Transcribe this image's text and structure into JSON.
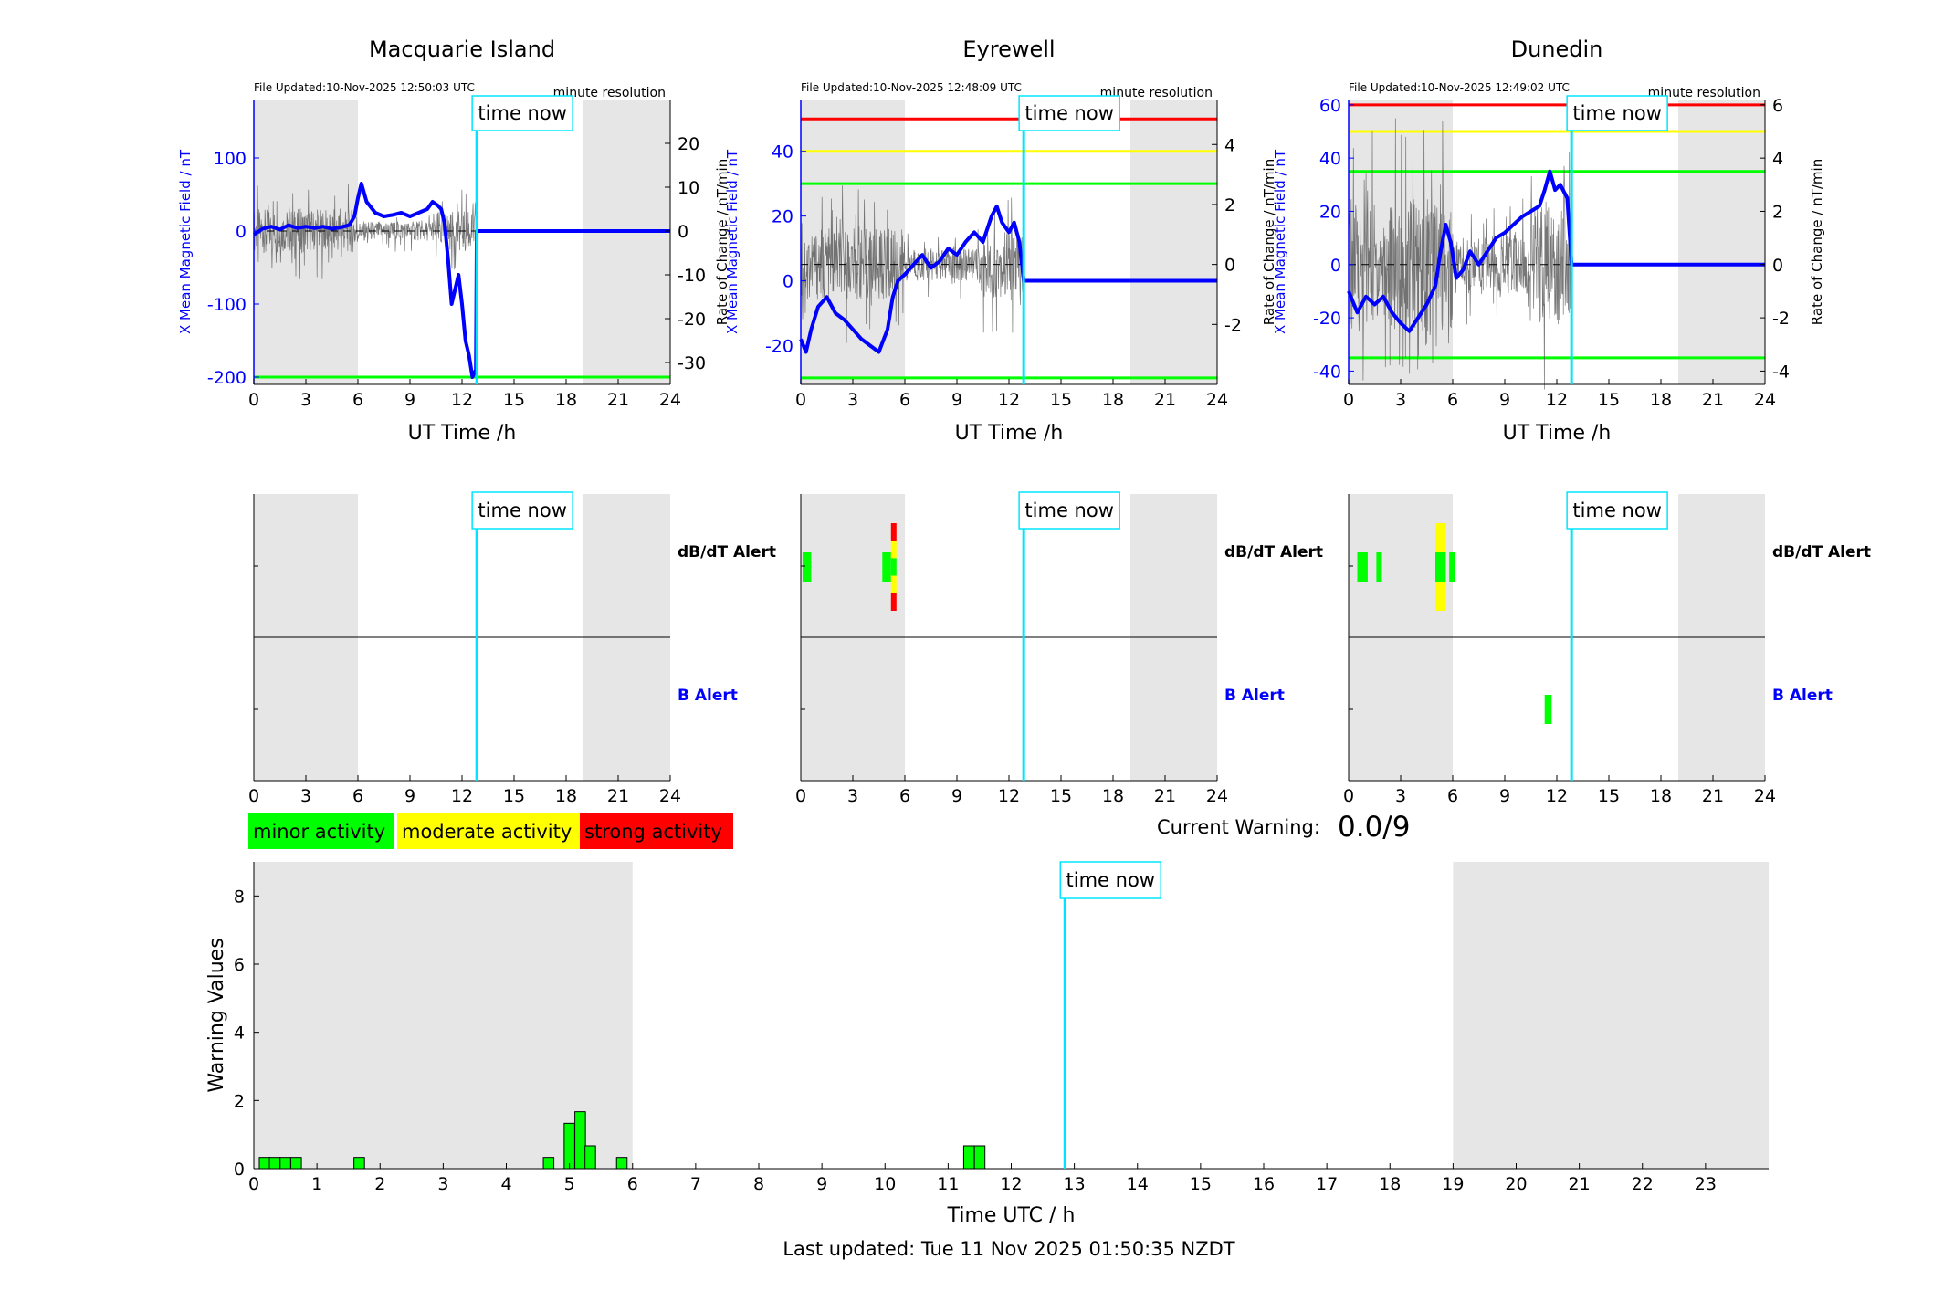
{
  "colors": {
    "blue": "#0000ff",
    "cyan": "#00e5ff",
    "green": "#00ff00",
    "yellow": "#ffff00",
    "red": "#ff0000",
    "grey_band": "#e6e6e6"
  },
  "time_now_label": "time now",
  "time_now_hour": 12.85,
  "stations": [
    {
      "name": "Macquarie Island",
      "file_updated": "File Updated:10-Nov-2025 12:50:03 UTC",
      "resolution": "minute resolution",
      "ylabel_left": "X Mean Magnetic Field / nT",
      "ylabel_right": "Rate of Change / nT/min",
      "xlabel": "UT Time /h",
      "ylim_left": [
        -210,
        180
      ],
      "yticks_left": [
        -200,
        -100,
        0,
        100
      ],
      "ylim_right": [
        -35,
        30
      ],
      "yticks_right": [
        -30,
        -20,
        -10,
        0,
        10,
        20
      ],
      "threshold_lines": [
        {
          "value": -200,
          "color": "green"
        }
      ],
      "x_field_series": [
        [
          0,
          -5
        ],
        [
          0.5,
          3
        ],
        [
          1,
          6
        ],
        [
          1.5,
          2
        ],
        [
          2,
          8
        ],
        [
          2.5,
          4
        ],
        [
          3,
          6
        ],
        [
          3.5,
          4
        ],
        [
          4,
          6
        ],
        [
          4.5,
          3
        ],
        [
          5,
          5
        ],
        [
          5.5,
          8
        ],
        [
          5.8,
          20
        ],
        [
          6,
          45
        ],
        [
          6.2,
          65
        ],
        [
          6.5,
          40
        ],
        [
          7,
          25
        ],
        [
          7.5,
          20
        ],
        [
          8,
          22
        ],
        [
          8.5,
          25
        ],
        [
          9,
          20
        ],
        [
          9.5,
          25
        ],
        [
          10,
          30
        ],
        [
          10.3,
          40
        ],
        [
          10.6,
          35
        ],
        [
          10.8,
          30
        ],
        [
          11,
          10
        ],
        [
          11.2,
          -40
        ],
        [
          11.4,
          -100
        ],
        [
          11.6,
          -80
        ],
        [
          11.8,
          -60
        ],
        [
          12,
          -100
        ],
        [
          12.2,
          -150
        ],
        [
          12.4,
          -170
        ],
        [
          12.6,
          -200
        ],
        [
          12.8,
          -190
        ],
        [
          12.85,
          0
        ],
        [
          24,
          0
        ]
      ],
      "roc_amplitude": 5,
      "dbdt_alert": [],
      "b_alert": []
    },
    {
      "name": "Eyrewell",
      "file_updated": "File Updated:10-Nov-2025 12:48:09 UTC",
      "resolution": "minute resolution",
      "ylabel_left": "X Mean Magnetic Field / nT",
      "ylabel_right": "Rate of Change / nT/min",
      "xlabel": "UT Time /h",
      "ylim_left": [
        -32,
        56
      ],
      "yticks_left": [
        -20,
        0,
        20,
        40
      ],
      "ylim_right": [
        -4,
        5.5
      ],
      "yticks_right": [
        -2,
        0,
        2,
        4
      ],
      "threshold_lines": [
        {
          "value": 50,
          "color": "red"
        },
        {
          "value": 40,
          "color": "yellow"
        },
        {
          "value": 30,
          "color": "green"
        },
        {
          "value": -30,
          "color": "green"
        }
      ],
      "x_field_series": [
        [
          0,
          -18
        ],
        [
          0.3,
          -22
        ],
        [
          0.6,
          -15
        ],
        [
          1,
          -8
        ],
        [
          1.5,
          -5
        ],
        [
          2,
          -10
        ],
        [
          2.5,
          -12
        ],
        [
          3,
          -15
        ],
        [
          3.5,
          -18
        ],
        [
          4,
          -20
        ],
        [
          4.5,
          -22
        ],
        [
          5,
          -15
        ],
        [
          5.3,
          -5
        ],
        [
          5.6,
          0
        ],
        [
          6,
          2
        ],
        [
          6.5,
          5
        ],
        [
          7,
          8
        ],
        [
          7.5,
          4
        ],
        [
          8,
          6
        ],
        [
          8.5,
          10
        ],
        [
          9,
          8
        ],
        [
          9.5,
          12
        ],
        [
          10,
          15
        ],
        [
          10.5,
          12
        ],
        [
          11,
          20
        ],
        [
          11.3,
          23
        ],
        [
          11.6,
          18
        ],
        [
          12,
          15
        ],
        [
          12.3,
          18
        ],
        [
          12.6,
          12
        ],
        [
          12.85,
          0
        ],
        [
          24,
          0
        ]
      ],
      "roc_amplitude": 1.2,
      "dbdt_alert": [
        {
          "start": 0.1,
          "end": 0.6,
          "levels": [
            "green"
          ]
        },
        {
          "start": 4.7,
          "end": 5.2,
          "levels": [
            "green"
          ]
        },
        {
          "start": 5.2,
          "end": 5.5,
          "levels": [
            "red",
            "yellow",
            "green",
            "yellow",
            "red"
          ]
        }
      ],
      "b_alert": []
    },
    {
      "name": "Dunedin",
      "file_updated": "File Updated:10-Nov-2025 12:49:02 UTC",
      "resolution": "minute resolution",
      "ylabel_left": "X Mean Magnetic Field / nT",
      "ylabel_right": "Rate of Change / nT/min",
      "xlabel": "UT Time /h",
      "ylim_left": [
        -45,
        62
      ],
      "yticks_left": [
        -40,
        -20,
        0,
        20,
        40,
        60
      ],
      "ylim_right": [
        -4.5,
        6.2
      ],
      "yticks_right": [
        -4,
        -2,
        0,
        2,
        4,
        6
      ],
      "threshold_lines": [
        {
          "value": 60,
          "color": "red"
        },
        {
          "value": 50,
          "color": "yellow"
        },
        {
          "value": 35,
          "color": "green"
        },
        {
          "value": -35,
          "color": "green"
        }
      ],
      "x_field_series": [
        [
          0,
          -10
        ],
        [
          0.5,
          -18
        ],
        [
          1,
          -12
        ],
        [
          1.5,
          -15
        ],
        [
          2,
          -12
        ],
        [
          2.5,
          -18
        ],
        [
          3,
          -22
        ],
        [
          3.5,
          -25
        ],
        [
          4,
          -20
        ],
        [
          4.5,
          -15
        ],
        [
          5,
          -8
        ],
        [
          5.3,
          5
        ],
        [
          5.6,
          15
        ],
        [
          5.9,
          8
        ],
        [
          6.2,
          -5
        ],
        [
          6.6,
          -2
        ],
        [
          7,
          5
        ],
        [
          7.5,
          0
        ],
        [
          8,
          5
        ],
        [
          8.5,
          10
        ],
        [
          9,
          12
        ],
        [
          9.5,
          15
        ],
        [
          10,
          18
        ],
        [
          10.5,
          20
        ],
        [
          11,
          22
        ],
        [
          11.3,
          28
        ],
        [
          11.6,
          35
        ],
        [
          11.9,
          28
        ],
        [
          12.2,
          30
        ],
        [
          12.6,
          25
        ],
        [
          12.85,
          0
        ],
        [
          24,
          0
        ]
      ],
      "roc_amplitude": 2.5,
      "dbdt_alert": [
        {
          "start": 0.5,
          "end": 1.1,
          "levels": [
            "green"
          ]
        },
        {
          "start": 1.6,
          "end": 1.9,
          "levels": [
            "green"
          ]
        },
        {
          "start": 5.0,
          "end": 5.6,
          "levels": [
            "yellow",
            "green",
            "yellow"
          ]
        },
        {
          "start": 5.8,
          "end": 6.1,
          "levels": [
            "green"
          ]
        }
      ],
      "b_alert": [
        {
          "start": 11.3,
          "end": 11.7,
          "levels": [
            "green"
          ]
        }
      ]
    }
  ],
  "alert_rows": {
    "dbdt": "dB/dT Alert",
    "b": "B Alert"
  },
  "alert_xticks": [
    0,
    3,
    6,
    9,
    12,
    15,
    18,
    21,
    24
  ],
  "legend": [
    {
      "label": "minor activity",
      "color": "green"
    },
    {
      "label": "moderate activity",
      "color": "yellow"
    },
    {
      "label": "strong activity",
      "color": "red"
    }
  ],
  "current_warning": {
    "label": "Current Warning:",
    "value": "0.0/9"
  },
  "chart_data": {
    "type": "bar",
    "xlabel": "Time UTC / h",
    "ylabel": "Warning Values",
    "xlim": [
      0,
      24
    ],
    "ylim": [
      0,
      9
    ],
    "yticks": [
      0,
      2,
      4,
      6,
      8
    ],
    "xticks": [
      0,
      1,
      2,
      3,
      4,
      5,
      6,
      7,
      8,
      9,
      10,
      11,
      12,
      13,
      14,
      15,
      16,
      17,
      18,
      19,
      20,
      21,
      22,
      23
    ],
    "bar_width_hours": 0.1667,
    "shaded_hours": [
      [
        0,
        6
      ],
      [
        19,
        24
      ]
    ],
    "bars": [
      {
        "x": 0.17,
        "value": 0.33
      },
      {
        "x": 0.33,
        "value": 0.33
      },
      {
        "x": 0.5,
        "value": 0.33
      },
      {
        "x": 0.67,
        "value": 0.33
      },
      {
        "x": 1.67,
        "value": 0.33
      },
      {
        "x": 4.67,
        "value": 0.33
      },
      {
        "x": 5.0,
        "value": 1.33
      },
      {
        "x": 5.17,
        "value": 1.67
      },
      {
        "x": 5.33,
        "value": 0.67
      },
      {
        "x": 5.83,
        "value": 0.33
      },
      {
        "x": 11.33,
        "value": 0.67
      },
      {
        "x": 11.5,
        "value": 0.67
      }
    ]
  },
  "last_updated": "Last updated: Tue 11 Nov 2025 01:50:35 NZDT"
}
